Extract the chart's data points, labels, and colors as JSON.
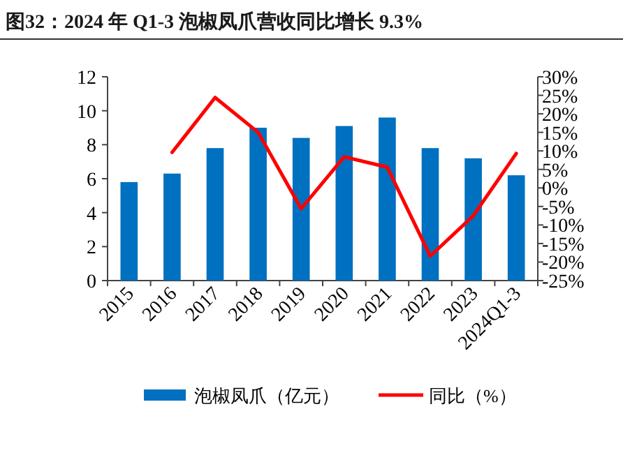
{
  "chart_data": {
    "type": "bar",
    "title": "图32：2024 年 Q1-3 泡椒凤爪营收同比增长 9.3%",
    "categories": [
      "2015",
      "2016",
      "2017",
      "2018",
      "2019",
      "2020",
      "2021",
      "2022",
      "2023",
      "2024Q1-3"
    ],
    "series": [
      {
        "name": "泡椒凤爪（亿元）",
        "color": "#0070c0",
        "values": [
          5.8,
          6.3,
          7.8,
          9.0,
          8.4,
          9.1,
          9.6,
          7.8,
          7.2,
          6.2
        ]
      },
      {
        "name": "同比（%）",
        "type": "line",
        "axis": "y2",
        "color": "#ff0000",
        "line_style": "solid",
        "values": [
          null,
          9.6,
          24.4,
          15.0,
          -5.6,
          8.4,
          5.6,
          -18.4,
          -7.5,
          9.3
        ]
      }
    ],
    "ylim": [
      0,
      12
    ],
    "yticks": [
      0,
      2,
      4,
      6,
      8,
      10,
      12
    ],
    "y2lim": [
      -25,
      30
    ],
    "y2ticks": [
      {
        "value": 30,
        "label": "30%"
      },
      {
        "value": 25,
        "label": "25%"
      },
      {
        "value": 20,
        "label": "20%"
      },
      {
        "value": 15,
        "label": "15%"
      },
      {
        "value": 10,
        "label": "10%"
      },
      {
        "value": 5,
        "label": "5%"
      },
      {
        "value": 0,
        "label": "0%"
      },
      {
        "value": -5,
        "label": "-5%"
      },
      {
        "value": -10,
        "label": "-10%"
      },
      {
        "value": -15,
        "label": "-15%"
      },
      {
        "value": -20,
        "label": "-20%"
      },
      {
        "value": -25,
        "label": "-25%"
      }
    ],
    "grid": false,
    "legend": "bottom",
    "marker": "none"
  }
}
